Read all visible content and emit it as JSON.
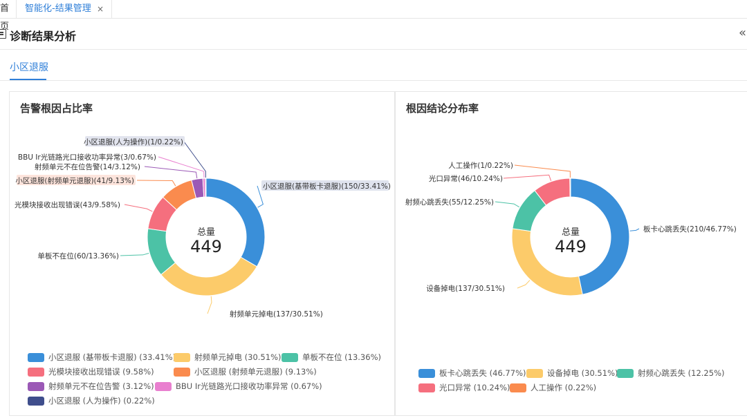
{
  "tabs": {
    "home_label": "首页",
    "active_label": "智能化-结果管理",
    "close_glyph": "×"
  },
  "header": {
    "title": "诊断结果分析",
    "collapse_glyph": "«",
    "icon": "document-icon"
  },
  "subtabs": {
    "active_label": "小区退服"
  },
  "panels": {
    "left_title": "告警根因占比率",
    "right_title": "根因结论分布率"
  },
  "chart_data": [
    {
      "type": "pie",
      "donut": true,
      "title": "告警根因占比率",
      "center_label": "总量",
      "center_value": "449",
      "legend_position": "bottom",
      "slices": [
        {
          "name": "小区退服(基带板卡退服)",
          "value": 150,
          "percent": 33.41,
          "color": "#3a8fd9",
          "label": "小区退服(基带板卡退服)(150/33.41%)",
          "legend": "小区退服 (基带板卡退服) (33.41%)"
        },
        {
          "name": "射频单元掉电",
          "value": 137,
          "percent": 30.51,
          "color": "#fccb6a",
          "label": "射频单元掉电(137/30.51%)",
          "legend": "射频单元掉电 (30.51%)"
        },
        {
          "name": "单板不在位",
          "value": 60,
          "percent": 13.36,
          "color": "#4cc2a6",
          "label": "单板不在位(60/13.36%)",
          "legend": "单板不在位 (13.36%)"
        },
        {
          "name": "光模块接收出现错误",
          "value": 43,
          "percent": 9.58,
          "color": "#f56f7e",
          "label": "光模块接收出现错误(43/9.58%)",
          "legend": "光模块接收出现错误 (9.58%)"
        },
        {
          "name": "小区退服(射频单元退服)",
          "value": 41,
          "percent": 9.13,
          "color": "#fa8b4e",
          "label": "小区退服(射频单元退服)(41/9.13%)",
          "legend": "小区退服 (射频单元退服) (9.13%)"
        },
        {
          "name": "射频单元不在位告警",
          "value": 14,
          "percent": 3.12,
          "color": "#9b59b6",
          "label": "射频单元不在位告警(14/3.12%)",
          "legend": "射频单元不在位告警 (3.12%)"
        },
        {
          "name": "BBU Ir光链路光口接收功率异常",
          "value": 3,
          "percent": 0.67,
          "color": "#e97fcf",
          "label": "BBU Ir光链路光口接收功率异常(3/0.67%)",
          "legend": "BBU Ir光链路光口接收功率异常 (0.67%)"
        },
        {
          "name": "小区退服(人为操作)",
          "value": 1,
          "percent": 0.22,
          "color": "#3f4e8c",
          "label": "小区退服(人为操作)(1/0.22%)",
          "legend": "小区退服 (人为操作) (0.22%)"
        }
      ]
    },
    {
      "type": "pie",
      "donut": true,
      "title": "根因结论分布率",
      "center_label": "总量",
      "center_value": "449",
      "legend_position": "bottom",
      "slices": [
        {
          "name": "板卡心跳丢失",
          "value": 210,
          "percent": 46.77,
          "color": "#3a8fd9",
          "label": "板卡心跳丢失(210/46.77%)",
          "legend": "板卡心跳丢失 (46.77%)"
        },
        {
          "name": "设备掉电",
          "value": 137,
          "percent": 30.51,
          "color": "#fccb6a",
          "label": "设备掉电(137/30.51%)",
          "legend": "设备掉电 (30.51%)"
        },
        {
          "name": "射频心跳丢失",
          "value": 55,
          "percent": 12.25,
          "color": "#4cc2a6",
          "label": "射频心跳丢失(55/12.25%)",
          "legend": "射频心跳丢失 (12.25%)"
        },
        {
          "name": "光口异常",
          "value": 46,
          "percent": 10.24,
          "color": "#f56f7e",
          "label": "光口异常(46/10.24%)",
          "legend": "光口异常 (10.24%)"
        },
        {
          "name": "人工操作",
          "value": 1,
          "percent": 0.22,
          "color": "#fa8b4e",
          "label": "人工操作(1/0.22%)",
          "legend": "人工操作 (0.22%)"
        }
      ]
    }
  ]
}
